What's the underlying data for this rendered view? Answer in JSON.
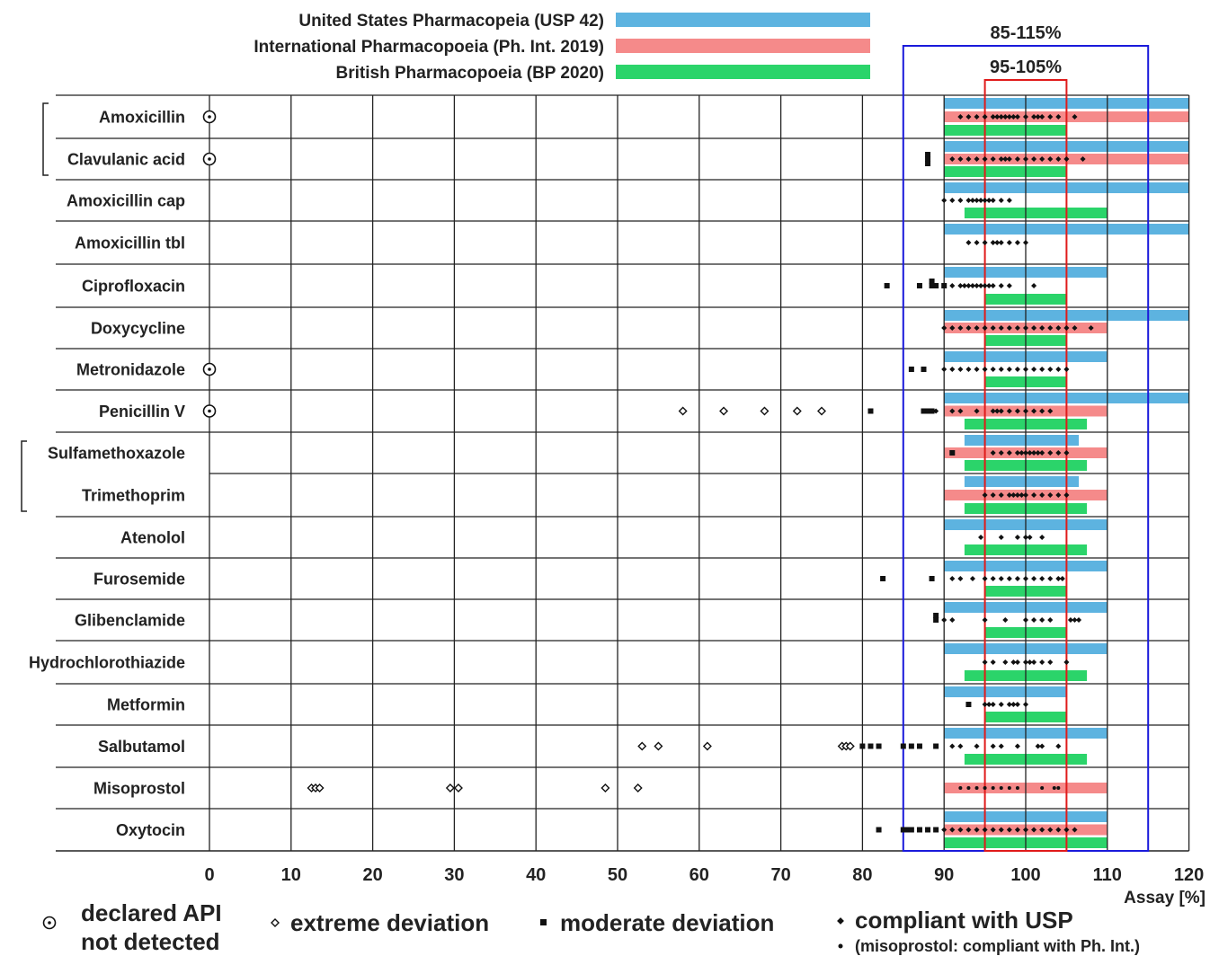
{
  "chart_data": {
    "type": "scatter",
    "xlabel": "Assay [%]",
    "xlim": [
      0,
      120
    ],
    "x_ticks": [
      "0",
      "10",
      "20",
      "30",
      "40",
      "50",
      "60",
      "70",
      "80",
      "90",
      "100",
      "110",
      "120"
    ],
    "grid": true,
    "legend": {
      "pharmacopoeias": [
        {
          "name": "United States Pharmacopeia (USP 42)",
          "color": "#5db3e0"
        },
        {
          "name": "International Pharmacopoeia (Ph. Int. 2019)",
          "color": "#f58a8a"
        },
        {
          "name": "British Pharmacopoeia (BP 2020)",
          "color": "#2bd46a"
        }
      ],
      "markers": [
        {
          "symbol": "⊙",
          "label": "declared API not detected",
          "label_lines": [
            "declared API",
            "not detected"
          ]
        },
        {
          "symbol": "◇",
          "label": "extreme deviation"
        },
        {
          "symbol": "■",
          "label": "moderate deviation"
        },
        {
          "symbol": "◆",
          "label": "compliant with USP"
        },
        {
          "symbol": "•",
          "label": "(misoprostol: compliant with Ph. Int.)"
        }
      ]
    },
    "ranges": [
      {
        "label": "85-115%",
        "min": 85,
        "max": 115,
        "color": "#1a1adb"
      },
      {
        "label": "95-105%",
        "min": 95,
        "max": 105,
        "color": "#e01b1b"
      }
    ],
    "rows": [
      {
        "name": "Amoxicillin",
        "not_detected": true,
        "usp": [
          90,
          120
        ],
        "phint": [
          90,
          120
        ],
        "bp": [
          90,
          105
        ],
        "extreme": [],
        "moderate": [],
        "compliant": [
          92,
          93,
          94,
          95,
          96,
          96.5,
          97,
          97.5,
          98,
          98.5,
          99,
          100,
          101,
          101.5,
          102,
          103,
          104,
          106
        ]
      },
      {
        "name": "Clavulanic acid",
        "not_detected": true,
        "usp": [
          90,
          120
        ],
        "phint": [
          90,
          120
        ],
        "bp": [
          90,
          105
        ],
        "extreme": [],
        "moderate": [
          88,
          88,
          88
        ],
        "compliant": [
          91,
          92,
          93,
          94,
          95,
          96,
          97,
          97.5,
          98,
          99,
          100,
          101,
          102,
          103,
          104,
          105,
          107
        ]
      },
      {
        "name": "Amoxicillin cap",
        "not_detected": false,
        "usp": [
          90,
          120
        ],
        "phint": null,
        "bp": [
          92.5,
          110
        ],
        "extreme": [],
        "moderate": [],
        "compliant": [
          90,
          91,
          92,
          93,
          93.5,
          94,
          94.5,
          95,
          95.5,
          96,
          97,
          98
        ]
      },
      {
        "name": "Amoxicillin tbl",
        "not_detected": false,
        "usp": [
          90,
          120
        ],
        "phint": null,
        "bp": null,
        "extreme": [],
        "moderate": [],
        "compliant": [
          93,
          94,
          95,
          96,
          96.5,
          97,
          98,
          99,
          100
        ]
      },
      {
        "name": "Ciprofloxacin",
        "not_detected": false,
        "usp": [
          90,
          110
        ],
        "phint": null,
        "bp": [
          95,
          105
        ],
        "extreme": [],
        "moderate": [
          83,
          87,
          88.5,
          88.5,
          89,
          90
        ],
        "compliant": [
          91,
          92,
          92.5,
          93,
          93.5,
          94,
          94.5,
          95,
          95.5,
          96,
          97,
          98,
          101
        ]
      },
      {
        "name": "Doxycycline",
        "not_detected": false,
        "usp": [
          90,
          120
        ],
        "phint": [
          90,
          110
        ],
        "bp": [
          95,
          105
        ],
        "extreme": [],
        "moderate": [],
        "compliant": [
          90,
          91,
          92,
          93,
          94,
          95,
          96,
          97,
          98,
          99,
          100,
          101,
          102,
          103,
          104,
          105,
          106,
          108
        ]
      },
      {
        "name": "Metronidazole",
        "not_detected": true,
        "usp": [
          90,
          110
        ],
        "phint": null,
        "bp": [
          95,
          105
        ],
        "extreme": [],
        "moderate": [
          86,
          87.5
        ],
        "compliant": [
          90,
          91,
          92,
          93,
          94,
          95,
          96,
          97,
          98,
          99,
          100,
          101,
          102,
          103,
          104,
          105
        ]
      },
      {
        "name": "Penicillin V",
        "not_detected": true,
        "usp": [
          90,
          120
        ],
        "phint": [
          90,
          110
        ],
        "bp": [
          92.5,
          107.5
        ],
        "extreme": [
          58,
          63,
          68,
          72,
          75
        ],
        "moderate": [
          81,
          87.5,
          88,
          88.5
        ],
        "compliant": [
          89,
          91,
          92,
          94,
          96,
          96.5,
          97,
          98,
          99,
          100,
          101,
          102,
          103
        ]
      },
      {
        "name": "Sulfamethoxazole",
        "not_detected": false,
        "usp": [
          92.5,
          106.5
        ],
        "phint": [
          90,
          110
        ],
        "bp": [
          92.5,
          107.5
        ],
        "extreme": [],
        "moderate": [
          91
        ],
        "compliant": [
          96,
          97,
          98,
          99,
          99.5,
          100,
          100.5,
          101,
          101.5,
          102,
          103,
          104,
          105
        ]
      },
      {
        "name": "Trimethoprim",
        "not_detected": false,
        "usp": [
          92.5,
          106.5
        ],
        "phint": [
          90,
          110
        ],
        "bp": [
          92.5,
          107.5
        ],
        "extreme": [],
        "moderate": [],
        "compliant": [
          95,
          96,
          97,
          98,
          98.5,
          99,
          99.5,
          100,
          101,
          102,
          103,
          104,
          105
        ]
      },
      {
        "name": "Atenolol",
        "not_detected": false,
        "usp": [
          90,
          110
        ],
        "phint": null,
        "bp": [
          92.5,
          107.5
        ],
        "extreme": [],
        "moderate": [],
        "compliant": [
          94.5,
          97,
          99,
          100,
          100.5,
          102
        ]
      },
      {
        "name": "Furosemide",
        "not_detected": false,
        "usp": [
          90,
          110
        ],
        "phint": null,
        "bp": [
          95,
          105
        ],
        "extreme": [],
        "moderate": [
          82.5,
          88.5
        ],
        "compliant": [
          91,
          92,
          93.5,
          95,
          96,
          97,
          98,
          99,
          100,
          101,
          102,
          103,
          104,
          104.5
        ]
      },
      {
        "name": "Glibenclamide",
        "not_detected": false,
        "usp": [
          90,
          110
        ],
        "phint": null,
        "bp": [
          95,
          105
        ],
        "extreme": [],
        "moderate": [
          89,
          89
        ],
        "compliant": [
          90,
          91,
          95,
          97.5,
          100,
          101,
          102,
          103,
          105.5,
          106,
          106.5
        ]
      },
      {
        "name": "Hydrochlorothiazide",
        "not_detected": false,
        "usp": [
          90,
          110
        ],
        "phint": null,
        "bp": [
          92.5,
          107.5
        ],
        "extreme": [],
        "moderate": [],
        "compliant": [
          95,
          96,
          97.5,
          98.5,
          99,
          100,
          100.5,
          101,
          102,
          103,
          105
        ]
      },
      {
        "name": "Metformin",
        "not_detected": false,
        "usp": [
          90,
          105
        ],
        "phint": null,
        "bp": [
          95,
          105
        ],
        "extreme": [],
        "moderate": [
          93
        ],
        "compliant": [
          95,
          95.5,
          96,
          97,
          98,
          98.5,
          99,
          100
        ]
      },
      {
        "name": "Salbutamol",
        "not_detected": false,
        "usp": [
          90,
          110
        ],
        "phint": null,
        "bp": [
          92.5,
          107.5
        ],
        "extreme": [
          53,
          55,
          61,
          77.5,
          78,
          78.5
        ],
        "moderate": [
          80,
          81,
          82,
          85,
          86,
          87,
          89
        ],
        "compliant": [
          91,
          92,
          94,
          96,
          97,
          99,
          101.5,
          102,
          104
        ]
      },
      {
        "name": "Misoprostol",
        "not_detected": false,
        "usp": null,
        "phint": [
          90,
          110
        ],
        "bp": null,
        "extreme": [
          12.5,
          13,
          13.5,
          29.5,
          30.5,
          48.5,
          52.5
        ],
        "moderate": [],
        "compliant": [
          92,
          93,
          94,
          95,
          96,
          97,
          98,
          99,
          102,
          103.5,
          104
        ]
      },
      {
        "name": "Oxytocin",
        "not_detected": false,
        "usp": [
          90,
          110
        ],
        "phint": [
          90,
          110
        ],
        "bp": [
          90,
          110
        ],
        "extreme": [],
        "moderate": [
          82,
          85,
          85.5,
          86,
          87,
          88,
          89
        ],
        "compliant": [
          90,
          91,
          92,
          93,
          94,
          95,
          96,
          97,
          98,
          99,
          100,
          101,
          102,
          103,
          104,
          105,
          106
        ]
      }
    ]
  }
}
